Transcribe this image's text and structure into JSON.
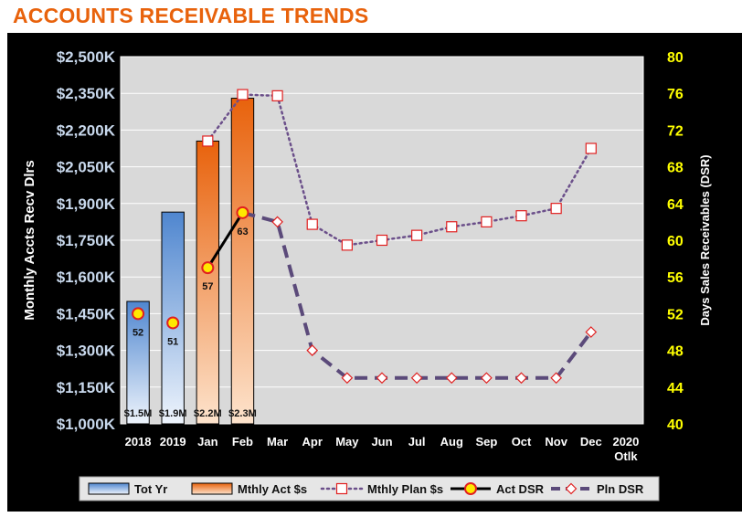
{
  "title": "ACCOUNTS RECEIVABLE TRENDS",
  "chart_data": {
    "type": "bar",
    "categories": [
      "2018",
      "2019",
      "Jan",
      "Feb",
      "Mar",
      "Apr",
      "May",
      "Jun",
      "Jul",
      "Aug",
      "Sep",
      "Oct",
      "Nov",
      "Dec",
      "2020\nOtlk"
    ],
    "ylabel": "Monthly Accts Recv Dlrs",
    "y2label": "Days Sales Receivables (DSR)",
    "ylim": [
      1000,
      2500
    ],
    "y_ticks": [
      "$1,000K",
      "$1,150K",
      "$1,300K",
      "$1,450K",
      "$1,600K",
      "$1,750K",
      "$1,900K",
      "$2,050K",
      "$2,200K",
      "$2,350K",
      "$2,500K"
    ],
    "y2lim": [
      40,
      80
    ],
    "y2_ticks": [
      "40",
      "44",
      "48",
      "52",
      "56",
      "60",
      "64",
      "68",
      "72",
      "76",
      "80"
    ],
    "grid": true,
    "legend_position": "bottom",
    "series": [
      {
        "name": "Tot Yr",
        "kind": "bar",
        "axis": "left",
        "color": "#5b8fd4",
        "values": [
          1500,
          1865,
          null,
          null,
          null,
          null,
          null,
          null,
          null,
          null,
          null,
          null,
          null,
          null,
          null
        ],
        "labels": [
          "$1.5M",
          "$1.9M",
          null,
          null,
          null,
          null,
          null,
          null,
          null,
          null,
          null,
          null,
          null,
          null,
          null
        ]
      },
      {
        "name": "Mthly Act $s",
        "kind": "bar",
        "axis": "left",
        "color": "#e8741e",
        "values": [
          null,
          null,
          2155,
          2330,
          null,
          null,
          null,
          null,
          null,
          null,
          null,
          null,
          null,
          null,
          null
        ],
        "labels": [
          null,
          null,
          "$2.2M",
          "$2.3M",
          null,
          null,
          null,
          null,
          null,
          null,
          null,
          null,
          null,
          null,
          null
        ]
      },
      {
        "name": "Mthly Plan $s",
        "kind": "line",
        "axis": "left",
        "color": "#6b4f8a",
        "values": [
          null,
          null,
          2155,
          2345,
          2340,
          1815,
          1730,
          1750,
          1770,
          1805,
          1825,
          1850,
          1880,
          2125,
          null
        ]
      },
      {
        "name": "Act DSR",
        "kind": "line",
        "axis": "right",
        "color": "#000000",
        "values": [
          52,
          51,
          57,
          63,
          null,
          null,
          null,
          null,
          null,
          null,
          null,
          null,
          null,
          null,
          null
        ],
        "labels": [
          "52",
          "51",
          "57",
          "63",
          null,
          null,
          null,
          null,
          null,
          null,
          null,
          null,
          null,
          null,
          null
        ]
      },
      {
        "name": "Pln DSR",
        "kind": "line",
        "axis": "right",
        "color": "#5b4a7a",
        "values": [
          null,
          null,
          null,
          63,
          62,
          48,
          45,
          45,
          45,
          45,
          45,
          45,
          45,
          50,
          null
        ]
      }
    ]
  }
}
